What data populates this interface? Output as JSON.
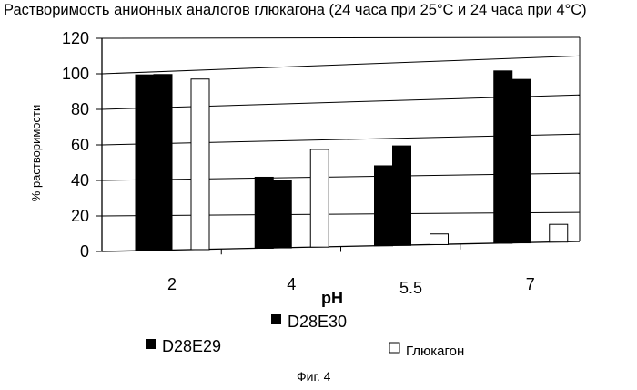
{
  "chart_data": {
    "type": "bar",
    "title": "Растворимость анионных аналогов глюкагона (24 часа при 25°C и 24 часа при 4°C)",
    "xlabel": "pH",
    "ylabel": "% растворимости",
    "ylim": [
      0,
      120
    ],
    "yticks": [
      "0",
      "20",
      "40",
      "60",
      "80",
      "100",
      "120"
    ],
    "categories": [
      "2",
      "4",
      "5.5",
      "7"
    ],
    "series": [
      {
        "name": "D28E29",
        "color": "#000000",
        "values": [
          99,
          40,
          45,
          97
        ]
      },
      {
        "name": "D28E30",
        "color": "#000000",
        "values": [
          99,
          38,
          56,
          92
        ]
      },
      {
        "name": "Глюкагон",
        "color": "#ffffff",
        "values": [
          96,
          55,
          6,
          10
        ]
      }
    ],
    "grid": true,
    "legend": [
      "D28E30",
      "D28E29",
      "Глюкагон"
    ]
  },
  "caption": "Фиг. 4"
}
